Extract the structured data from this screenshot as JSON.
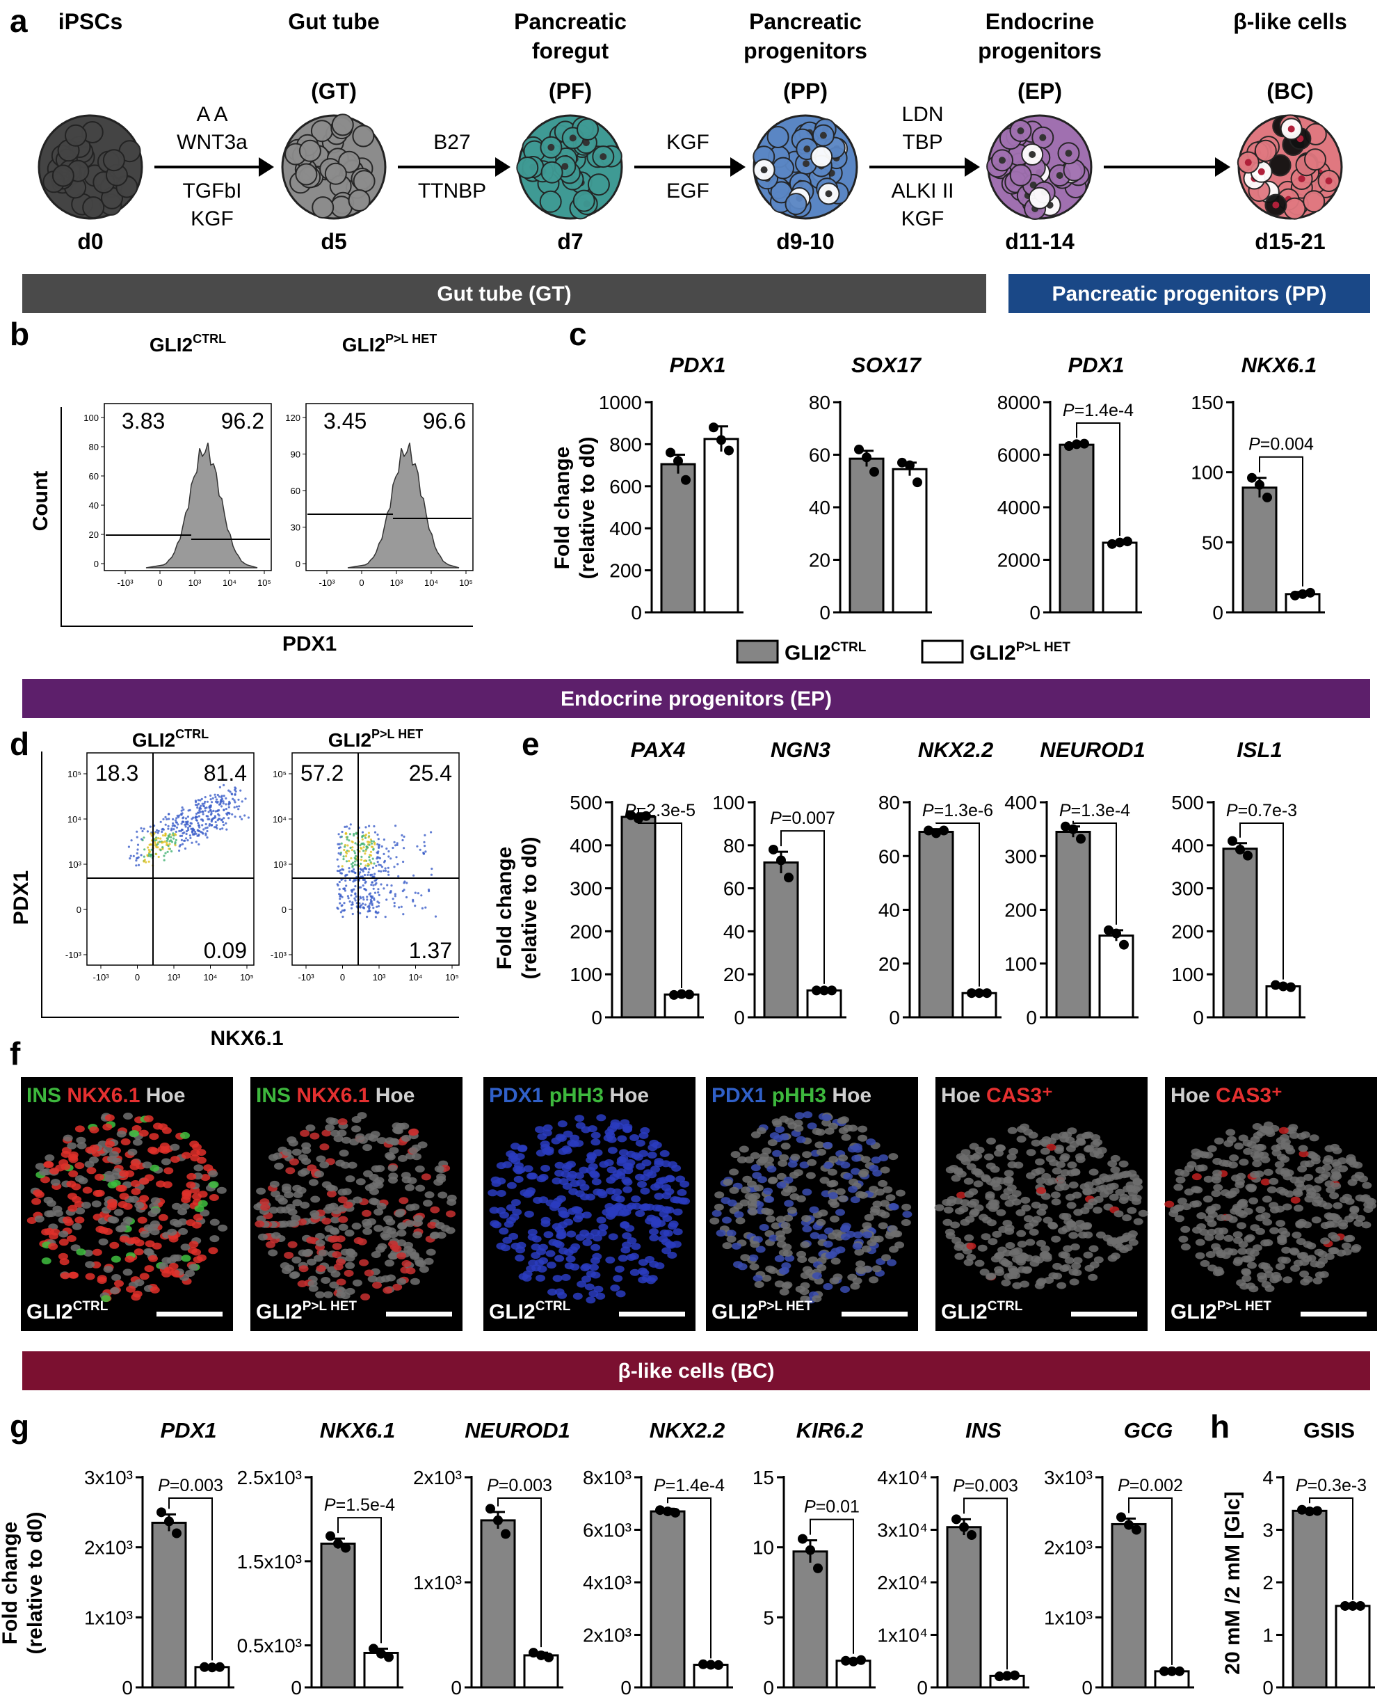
{
  "panel_labels": {
    "a": "a",
    "b": "b",
    "c": "c",
    "d": "d",
    "e": "e",
    "f": "f",
    "g": "g",
    "h": "h"
  },
  "colors": {
    "ctrl_bar": "#858585",
    "het_bar": "#ffffff",
    "gt_band": "#4a4a4a",
    "pp_band": "#1a4887",
    "ep_band": "#5d1f6b",
    "bc_band": "#7b1030"
  },
  "protocol": {
    "stages": [
      {
        "name": "iPSCs",
        "abbr": "",
        "day": "d0",
        "color": "#444444"
      },
      {
        "name": "Gut tube",
        "abbr": "(GT)",
        "day": "d5",
        "color": "#8c8c8c"
      },
      {
        "name": "Pancreatic foregut",
        "abbr": "(PF)",
        "day": "d7",
        "color": "#3f9a94"
      },
      {
        "name": "Pancreatic progenitors",
        "abbr": "(PP)",
        "day": "d9-10",
        "color": "#5a86c4"
      },
      {
        "name": "Endocrine progenitors",
        "abbr": "(EP)",
        "day": "d11-14",
        "color": "#a070b0"
      },
      {
        "name": "β-like cells",
        "abbr": "(BC)",
        "day": "d15-21",
        "color": "#e07880"
      }
    ],
    "treatments": [
      [
        "A A",
        "WNT3a",
        "TGFbI",
        "KGF"
      ],
      [
        "B27",
        "TTNBP"
      ],
      [
        "KGF",
        "EGF"
      ],
      [
        "LDN",
        "TBP",
        "ALKI II",
        "KGF"
      ],
      []
    ]
  },
  "bands": {
    "gt": "Gut tube (GT)",
    "pp": "Pancreatic progenitors (PP)",
    "ep": "Endocrine progenitors (EP)",
    "bc": "β-like cells (BC)"
  },
  "legend": {
    "ctrl_base": "GLI2",
    "ctrl_sup": "CTRL",
    "het_base": "GLI2",
    "het_sup": "P>L HET"
  },
  "flow_b": {
    "ylabel": "Count",
    "xlabel": "PDX1",
    "plots": [
      {
        "title_base": "GLI2",
        "title_sup": "CTRL",
        "left": "3.83",
        "right": "96.2",
        "yticks": [
          "100",
          "80",
          "60",
          "40",
          "20",
          "0"
        ]
      },
      {
        "title_base": "GLI2",
        "title_sup": "P>L HET",
        "left": "3.45",
        "right": "96.6",
        "yticks": [
          "120",
          "90",
          "60",
          "30",
          "0"
        ]
      }
    ],
    "xticks": [
      "-10³",
      "0",
      "10³",
      "10⁴",
      "10⁵"
    ]
  },
  "flow_d": {
    "ylabel": "PDX1",
    "xlabel": "NKX6.1",
    "plots": [
      {
        "title_base": "GLI2",
        "title_sup": "CTRL",
        "ul": "18.3",
        "ur": "81.4",
        "lr": "0.09"
      },
      {
        "title_base": "GLI2",
        "title_sup": "P>L HET",
        "ul": "57.2",
        "ur": "25.4",
        "lr": "1.37"
      }
    ],
    "xticks": [
      "-10³",
      "0",
      "10³",
      "10⁴",
      "10⁵"
    ],
    "yticks": [
      "10⁵",
      "10⁴",
      "10³",
      "0",
      "-10³"
    ]
  },
  "y_label_lines": [
    "Fold change",
    "(relative to d0)"
  ],
  "images_f": [
    {
      "markers": [
        [
          "INS",
          "#3db83d"
        ],
        [
          " NKX6.1",
          "#e53030"
        ],
        [
          " Hoe",
          "#cfcfcf"
        ]
      ],
      "geno_base": "GLI2",
      "geno_sup": "CTRL"
    },
    {
      "markers": [
        [
          "INS",
          "#3db83d"
        ],
        [
          " NKX6.1",
          "#e53030"
        ],
        [
          " Hoe",
          "#cfcfcf"
        ]
      ],
      "geno_base": "GLI2",
      "geno_sup": "P>L HET"
    },
    {
      "markers": [
        [
          "PDX1",
          "#3060c8"
        ],
        [
          " pHH3",
          "#3db83d"
        ],
        [
          " Hoe",
          "#cfcfcf"
        ]
      ],
      "geno_base": "GLI2",
      "geno_sup": "CTRL"
    },
    {
      "markers": [
        [
          "PDX1",
          "#3060c8"
        ],
        [
          " pHH3",
          "#3db83d"
        ],
        [
          " Hoe",
          "#cfcfcf"
        ]
      ],
      "geno_base": "GLI2",
      "geno_sup": "P>L HET"
    },
    {
      "markers": [
        [
          "Hoe",
          "#cfcfcf"
        ],
        [
          " CAS3⁺",
          "#e53030"
        ]
      ],
      "geno_base": "GLI2",
      "geno_sup": "CTRL"
    },
    {
      "markers": [
        [
          "Hoe",
          "#cfcfcf"
        ],
        [
          " CAS3⁺",
          "#e53030"
        ]
      ],
      "geno_base": "GLI2",
      "geno_sup": "P>L HET"
    }
  ],
  "chart_data": [
    {
      "panel": "c",
      "type": "bar",
      "title": "PDX1",
      "categories": [
        "GLI2 CTRL",
        "GLI2 P>L HET"
      ],
      "values": [
        705,
        825
      ],
      "errors": [
        45,
        60
      ],
      "points": [
        [
          760,
          720,
          630
        ],
        [
          880,
          820,
          770
        ]
      ],
      "ylim": [
        0,
        1000
      ],
      "yticks": [
        0,
        200,
        400,
        600,
        800,
        1000
      ],
      "ytick_labels": [
        "0",
        "200",
        "400",
        "600",
        "800",
        "1000"
      ],
      "pvalue": ""
    },
    {
      "panel": "c",
      "type": "bar",
      "title": "SOX17",
      "categories": [
        "GLI2 CTRL",
        "GLI2 P>L HET"
      ],
      "values": [
        58.5,
        54.5
      ],
      "errors": [
        3,
        2.5
      ],
      "points": [
        [
          62,
          59,
          53.5
        ],
        [
          57,
          56,
          49.5
        ]
      ],
      "ylim": [
        0,
        80
      ],
      "yticks": [
        0,
        20,
        40,
        60,
        80
      ],
      "ytick_labels": [
        "0",
        "20",
        "40",
        "60",
        "80"
      ],
      "pvalue": ""
    },
    {
      "panel": "c",
      "type": "bar",
      "title": "PDX1",
      "categories": [
        "GLI2 CTRL",
        "GLI2 P>L HET"
      ],
      "values": [
        6380,
        2650
      ],
      "errors": [
        50,
        50
      ],
      "points": [
        [
          6330,
          6400,
          6420
        ],
        [
          2600,
          2660,
          2700
        ]
      ],
      "ylim": [
        0,
        8000
      ],
      "yticks": [
        0,
        2000,
        4000,
        6000,
        8000
      ],
      "ytick_labels": [
        "0",
        "2000",
        "4000",
        "6000",
        "8000"
      ],
      "pvalue": "=1.4e-4"
    },
    {
      "panel": "c",
      "type": "bar",
      "title": "NKX6.1",
      "categories": [
        "GLI2 CTRL",
        "GLI2 P>L HET"
      ],
      "values": [
        89,
        13
      ],
      "errors": [
        7,
        1.5
      ],
      "points": [
        [
          96,
          91,
          82
        ],
        [
          12,
          13,
          14
        ]
      ],
      "ylim": [
        0,
        150
      ],
      "yticks": [
        0,
        50,
        100,
        150
      ],
      "ytick_labels": [
        "0",
        "50",
        "100",
        "150"
      ],
      "pvalue": "=0.004"
    },
    {
      "panel": "e",
      "type": "bar",
      "title": "PAX4",
      "categories": [
        "GLI2 CTRL",
        "GLI2 P>L HET"
      ],
      "values": [
        466,
        53
      ],
      "errors": [
        6,
        2
      ],
      "points": [
        [
          470,
          462,
          468
        ],
        [
          52,
          54,
          53
        ]
      ],
      "ylim": [
        0,
        500
      ],
      "yticks": [
        0,
        100,
        200,
        300,
        400,
        500
      ],
      "ytick_labels": [
        "0",
        "100",
        "200",
        "300",
        "400",
        "500"
      ],
      "pvalue": "=2.3e-5"
    },
    {
      "panel": "e",
      "type": "bar",
      "title": "NGN3",
      "categories": [
        "GLI2 CTRL",
        "GLI2 P>L HET"
      ],
      "values": [
        72,
        12.5
      ],
      "errors": [
        5,
        0.5
      ],
      "points": [
        [
          78,
          73,
          65
        ],
        [
          12.5,
          12.5,
          12.5
        ]
      ],
      "ylim": [
        0,
        100
      ],
      "yticks": [
        0,
        20,
        40,
        60,
        80,
        100
      ],
      "ytick_labels": [
        "0",
        "20",
        "40",
        "60",
        "80",
        "100"
      ],
      "pvalue": "=0.007"
    },
    {
      "panel": "e",
      "type": "bar",
      "title": "NKX2.2",
      "categories": [
        "GLI2 CTRL",
        "GLI2 P>L HET"
      ],
      "values": [
        69,
        9
      ],
      "errors": [
        1,
        0.4
      ],
      "points": [
        [
          69.5,
          68.5,
          69.5
        ],
        [
          9,
          9,
          9
        ]
      ],
      "ylim": [
        0,
        80
      ],
      "yticks": [
        0,
        20,
        40,
        60,
        80
      ],
      "ytick_labels": [
        "0",
        "20",
        "40",
        "60",
        "80"
      ],
      "pvalue": "=1.3e-6"
    },
    {
      "panel": "e",
      "type": "bar",
      "title": "NEUROD1",
      "categories": [
        "GLI2 CTRL",
        "GLI2 P>L HET"
      ],
      "values": [
        345,
        152
      ],
      "errors": [
        10,
        10
      ],
      "points": [
        [
          355,
          350,
          332
        ],
        [
          162,
          156,
          135
        ]
      ],
      "ylim": [
        0,
        400
      ],
      "yticks": [
        0,
        100,
        200,
        300,
        400
      ],
      "ytick_labels": [
        "0",
        "100",
        "200",
        "300",
        "400"
      ],
      "pvalue": "=1.3e-4"
    },
    {
      "panel": "e",
      "type": "bar",
      "title": "ISL1",
      "categories": [
        "GLI2 CTRL",
        "GLI2 P>L HET"
      ],
      "values": [
        392,
        72
      ],
      "errors": [
        13,
        3
      ],
      "points": [
        [
          410,
          390,
          376
        ],
        [
          75,
          72,
          70
        ]
      ],
      "ylim": [
        0,
        500
      ],
      "yticks": [
        0,
        100,
        200,
        300,
        400,
        500
      ],
      "ytick_labels": [
        "0",
        "100",
        "200",
        "300",
        "400",
        "500"
      ],
      "pvalue": "=0.7e-3"
    },
    {
      "panel": "g",
      "type": "bar",
      "title": "PDX1",
      "categories": [
        "GLI2 CTRL",
        "GLI2 P>L HET"
      ],
      "values": [
        2350,
        290
      ],
      "errors": [
        120,
        15
      ],
      "points": [
        [
          2500,
          2370,
          2200
        ],
        [
          290,
          285,
          290
        ]
      ],
      "ylim": [
        0,
        3000
      ],
      "yticks": [
        0,
        1000,
        2000,
        3000
      ],
      "ytick_labels": [
        "0",
        "1x10³",
        "2x10³",
        "3x10³"
      ],
      "pvalue": "=0.003"
    },
    {
      "panel": "g",
      "type": "bar",
      "title": "NKX6.1",
      "categories": [
        "GLI2 CTRL",
        "GLI2 P>L HET"
      ],
      "values": [
        1710,
        410
      ],
      "errors": [
        60,
        50
      ],
      "points": [
        [
          1800,
          1710,
          1660
        ],
        [
          460,
          400,
          360
        ]
      ],
      "ylim": [
        0,
        2500
      ],
      "yticks": [
        0,
        500,
        1500,
        2500
      ],
      "ytick_labels": [
        "0",
        "0.5x10³",
        "1.5x10³",
        "2.5x10³"
      ],
      "pvalue": "=1.5e-4"
    },
    {
      "panel": "g",
      "type": "bar",
      "title": "NEUROD1",
      "categories": [
        "GLI2 CTRL",
        "GLI2 P>L HET"
      ],
      "values": [
        1590,
        305
      ],
      "errors": [
        80,
        25
      ],
      "points": [
        [
          1700,
          1590,
          1460
        ],
        [
          330,
          305,
          285
        ]
      ],
      "ylim": [
        0,
        2000
      ],
      "yticks": [
        0,
        1000,
        2000
      ],
      "ytick_labels": [
        "0",
        "1x10³",
        "2x10³"
      ],
      "pvalue": "=0.003"
    },
    {
      "panel": "g",
      "type": "bar",
      "title": "NKX2.2",
      "categories": [
        "GLI2 CTRL",
        "GLI2 P>L HET"
      ],
      "values": [
        6700,
        860
      ],
      "errors": [
        100,
        30
      ],
      "points": [
        [
          6750,
          6700,
          6650
        ],
        [
          880,
          860,
          850
        ]
      ],
      "ylim": [
        0,
        8000
      ],
      "yticks": [
        0,
        2000,
        4000,
        6000,
        8000
      ],
      "ytick_labels": [
        "0",
        "2x10³",
        "4x10³",
        "6x10³",
        "8x10³"
      ],
      "pvalue": "=1.4e-4"
    },
    {
      "panel": "g",
      "type": "bar",
      "title": "KIR6.2",
      "categories": [
        "GLI2 CTRL",
        "GLI2 P>L HET"
      ],
      "values": [
        9.7,
        1.9
      ],
      "errors": [
        0.8,
        0.1
      ],
      "points": [
        [
          10.6,
          9.8,
          8.5
        ],
        [
          1.9,
          1.85,
          1.95
        ]
      ],
      "ylim": [
        0,
        15
      ],
      "yticks": [
        0,
        5,
        10,
        15
      ],
      "ytick_labels": [
        "0",
        "5",
        "10",
        "15"
      ],
      "pvalue": "=0.01"
    },
    {
      "panel": "g",
      "type": "bar",
      "title": "INS",
      "categories": [
        "GLI2 CTRL",
        "GLI2 P>L HET"
      ],
      "values": [
        30500,
        2200
      ],
      "errors": [
        1500,
        150
      ],
      "points": [
        [
          32000,
          30500,
          29000
        ],
        [
          2100,
          2200,
          2300
        ]
      ],
      "ylim": [
        0,
        40000
      ],
      "yticks": [
        0,
        10000,
        20000,
        30000,
        40000
      ],
      "ytick_labels": [
        "0",
        "1x10⁴",
        "2x10⁴",
        "3x10⁴",
        "4x10⁴"
      ],
      "pvalue": "=0.003"
    },
    {
      "panel": "g",
      "type": "bar",
      "title": "GCG",
      "categories": [
        "GLI2 CTRL",
        "GLI2 P>L HET"
      ],
      "values": [
        2330,
        230
      ],
      "errors": [
        80,
        10
      ],
      "points": [
        [
          2430,
          2320,
          2250
        ],
        [
          230,
          230,
          230
        ]
      ],
      "ylim": [
        0,
        3000
      ],
      "yticks": [
        0,
        1000,
        2000,
        3000
      ],
      "ytick_labels": [
        "0",
        "1x10³",
        "2x10³",
        "3x10³"
      ],
      "pvalue": "=0.002"
    },
    {
      "panel": "h",
      "type": "bar",
      "title": "GSIS",
      "ylabel": "20 mM /2 mM [Glc]",
      "categories": [
        "GLI2 CTRL",
        "GLI2 P>L HET"
      ],
      "values": [
        3.36,
        1.55
      ],
      "errors": [
        0.04,
        0.01
      ],
      "points": [
        [
          3.38,
          3.35,
          3.36
        ],
        [
          1.55,
          1.55,
          1.55
        ]
      ],
      "ylim": [
        0,
        4
      ],
      "yticks": [
        0,
        1,
        2,
        3,
        4
      ],
      "ytick_labels": [
        "0",
        "1",
        "2",
        "3",
        "4"
      ],
      "pvalue": "=0.3e-3"
    }
  ]
}
